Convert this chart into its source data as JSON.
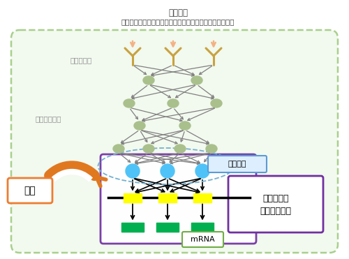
{
  "title_line1": "外部刺激",
  "title_line2": "（サイトカイン、ケモカイン、成長因子、ストレスなど）",
  "label_receptor": "レセプター",
  "label_signal": "シグナル伝達",
  "label_yosoku": "予測",
  "label_tf": "転写因子",
  "label_grn": "遺伝子制御\nネットワーク",
  "label_mrna": "mRNA",
  "bg_color": "#ffffff",
  "cell_border_color": "#a8d08d",
  "tf_box_color": "#ddeeff",
  "tf_box_edge": "#5b9bd5",
  "grn_box_edge": "#7030a0",
  "mrna_box_edge": "#70ad47",
  "yosoku_box_edge": "#ed7d31",
  "signal_node_color": "#a9c08c",
  "signal_node_edge": "#7a9e6a",
  "receptor_color": "#c8a240",
  "tf_node_color": "#4fc3f7",
  "gene_color": "#ffff00",
  "mrna_color": "#00b050",
  "arrow_color": "#808080",
  "stimuli_arrow_color": "#f4b183",
  "bold_arrow_color": "#e07820",
  "dashed_ellipse_color": "#74b0d1",
  "cell_fill": "#f2f9ee"
}
